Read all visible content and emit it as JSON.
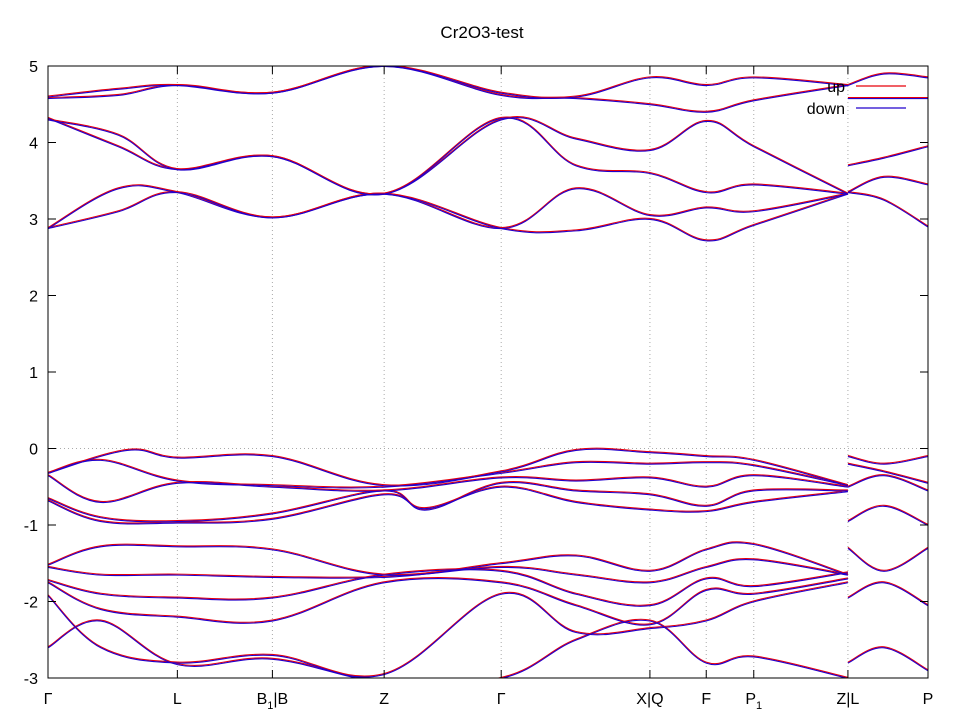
{
  "chart_data": {
    "type": "line",
    "title": "Cr2O3-test",
    "xlabel": "",
    "ylabel": "",
    "ylim": [
      -3,
      5
    ],
    "xlim": [
      0,
      10
    ],
    "yticks": [
      -3,
      -2,
      -1,
      0,
      1,
      2,
      3,
      4,
      5
    ],
    "grid": "dotted vertical lines at k-points, dotted horizontal line at 0",
    "legend_position": "top-right",
    "kpoints": [
      {
        "label": "Γ",
        "sub": "",
        "after": "",
        "x": 0
      },
      {
        "label": "L",
        "sub": "",
        "after": "",
        "x": 1.47
      },
      {
        "label": "B",
        "sub": "1",
        "after": "|B",
        "x": 2.55
      },
      {
        "label": "Z",
        "sub": "",
        "after": "",
        "x": 3.82
      },
      {
        "label": "Γ",
        "sub": "",
        "after": "",
        "x": 5.15
      },
      {
        "label": "X|Q",
        "sub": "",
        "after": "",
        "x": 6.84
      },
      {
        "label": "F",
        "sub": "",
        "after": "",
        "x": 7.48
      },
      {
        "label": "P",
        "sub": "1",
        "after": "",
        "x": 8.02
      },
      {
        "label": "Z|L",
        "sub": "",
        "after": "",
        "x": 9.09
      },
      {
        "label": "P",
        "sub": "",
        "after": "",
        "x": 10
      }
    ],
    "series": [
      {
        "name": "up",
        "color": "#e8000b"
      },
      {
        "name": "down",
        "color": "#2200cc"
      }
    ],
    "bands": [
      {
        "x": [
          0,
          0.9,
          1.47,
          2.55,
          3.82,
          5.15,
          6.0,
          6.84,
          7.48,
          8.02,
          9.09
        ],
        "y": [
          -0.32,
          -0.02,
          -0.12,
          -0.1,
          -0.48,
          -0.3,
          -0.02,
          -0.05,
          -0.1,
          -0.15,
          -0.48
        ]
      },
      {
        "x": [
          0,
          0.6,
          1.47,
          2.55,
          3.82,
          5.15,
          6.0,
          6.84,
          7.48,
          8.02,
          9.09
        ],
        "y": [
          -0.32,
          -0.15,
          -0.42,
          -0.48,
          -0.5,
          -0.32,
          -0.18,
          -0.2,
          -0.18,
          -0.22,
          -0.48
        ]
      },
      {
        "x": [
          0,
          0.6,
          1.47,
          2.55,
          3.82,
          5.15,
          6.0,
          6.84,
          7.48,
          8.02,
          9.09
        ],
        "y": [
          -0.35,
          -0.7,
          -0.45,
          -0.5,
          -0.55,
          -0.38,
          -0.42,
          -0.38,
          -0.5,
          -0.35,
          -0.5
        ]
      },
      {
        "x": [
          0,
          0.6,
          1.47,
          2.55,
          3.82,
          4.3,
          5.15,
          6.0,
          6.84,
          7.48,
          8.02,
          9.09
        ],
        "y": [
          -0.65,
          -0.9,
          -0.95,
          -0.85,
          -0.55,
          -0.8,
          -0.45,
          -0.55,
          -0.6,
          -0.75,
          -0.55,
          -0.55
        ]
      },
      {
        "x": [
          0,
          0.6,
          1.47,
          2.55,
          3.82,
          4.3,
          5.15,
          6.0,
          6.84,
          7.48,
          8.02,
          9.09
        ],
        "y": [
          -0.68,
          -0.95,
          -0.97,
          -0.92,
          -0.6,
          -0.78,
          -0.5,
          -0.7,
          -0.8,
          -0.82,
          -0.7,
          -0.56
        ]
      },
      {
        "x": [
          0,
          0.6,
          1.47,
          2.55,
          3.82,
          5.15,
          6.0,
          6.84,
          7.48,
          8.02,
          9.09
        ],
        "y": [
          -1.52,
          -1.28,
          -1.28,
          -1.32,
          -1.65,
          -1.5,
          -1.4,
          -1.6,
          -1.32,
          -1.25,
          -1.65
        ]
      },
      {
        "x": [
          0,
          0.6,
          1.47,
          2.55,
          3.82,
          5.15,
          6.0,
          6.84,
          7.48,
          8.02,
          9.09
        ],
        "y": [
          -1.55,
          -1.65,
          -1.65,
          -1.68,
          -1.68,
          -1.55,
          -1.65,
          -1.75,
          -1.55,
          -1.45,
          -1.65
        ]
      },
      {
        "x": [
          0,
          0.6,
          1.47,
          2.55,
          3.82,
          5.15,
          6.0,
          6.84,
          7.48,
          8.02,
          9.09
        ],
        "y": [
          -1.72,
          -1.9,
          -1.95,
          -1.95,
          -1.65,
          -1.6,
          -1.9,
          -2.05,
          -1.7,
          -1.8,
          -1.62
        ]
      },
      {
        "x": [
          0,
          0.6,
          1.47,
          2.55,
          3.82,
          5.15,
          6.0,
          6.84,
          7.48,
          8.02,
          9.09
        ],
        "y": [
          -1.75,
          -2.1,
          -2.2,
          -2.25,
          -1.75,
          -1.75,
          -2.05,
          -2.3,
          -1.85,
          -1.9,
          -1.7
        ]
      },
      {
        "x": [
          0,
          0.6,
          1.47,
          2.55,
          3.82,
          5.15,
          6.0,
          6.84,
          7.48,
          8.02,
          9.09
        ],
        "y": [
          -2.6,
          -2.25,
          -2.82,
          -2.75,
          -3.05,
          -3.0,
          -2.5,
          -2.25,
          -2.8,
          -2.72,
          -3.0
        ]
      },
      {
        "x": [
          0,
          0.6,
          1.47,
          2.55,
          3.82,
          5.15,
          6.0,
          6.84,
          7.48,
          8.02,
          9.09
        ],
        "y": [
          -1.92,
          -2.6,
          -2.8,
          -2.7,
          -2.95,
          -1.9,
          -2.4,
          -2.35,
          -2.25,
          -2.0,
          -1.75
        ]
      },
      {
        "x": [
          0,
          0.8,
          1.47,
          2.55,
          3.82,
          5.15,
          6.0,
          6.84,
          7.48,
          8.02,
          9.09
        ],
        "y": [
          2.88,
          3.4,
          3.35,
          3.02,
          3.33,
          2.88,
          2.85,
          3.0,
          2.72,
          2.92,
          3.33
        ]
      },
      {
        "x": [
          0,
          0.8,
          1.47,
          2.55,
          3.82,
          5.15,
          6.0,
          6.84,
          7.48,
          8.02,
          9.09
        ],
        "y": [
          2.88,
          3.1,
          3.35,
          3.02,
          3.33,
          2.88,
          3.4,
          3.05,
          3.15,
          3.1,
          3.33
        ]
      },
      {
        "x": [
          0,
          0.8,
          1.47,
          2.55,
          3.82,
          5.15,
          6.0,
          6.84,
          7.48,
          8.02,
          9.09
        ],
        "y": [
          4.32,
          3.95,
          3.65,
          3.82,
          3.33,
          4.32,
          3.7,
          3.6,
          3.35,
          3.45,
          3.33
        ]
      },
      {
        "x": [
          0,
          0.8,
          1.47,
          2.55,
          3.82,
          5.15,
          6.0,
          6.84,
          7.48,
          8.02,
          9.09
        ],
        "y": [
          4.3,
          4.1,
          3.65,
          3.82,
          3.33,
          4.3,
          4.05,
          3.9,
          4.28,
          3.95,
          3.33
        ]
      },
      {
        "x": [
          0,
          0.8,
          1.47,
          2.55,
          3.82,
          5.15,
          6.0,
          6.84,
          7.48,
          8.02,
          9.09
        ],
        "y": [
          4.58,
          4.62,
          4.75,
          4.65,
          5.0,
          4.62,
          4.58,
          4.5,
          4.4,
          4.55,
          4.75
        ]
      },
      {
        "x": [
          0,
          0.8,
          1.47,
          2.55,
          3.82,
          5.15,
          6.0,
          6.84,
          7.48,
          8.02,
          9.09
        ],
        "y": [
          4.6,
          4.7,
          4.75,
          4.65,
          5.0,
          4.65,
          4.6,
          4.85,
          4.75,
          4.85,
          4.75
        ]
      }
    ],
    "bands_last": [
      {
        "x": [
          9.09,
          9.5,
          10
        ],
        "y": [
          -0.1,
          -0.2,
          -0.1
        ]
      },
      {
        "x": [
          9.09,
          9.5,
          10
        ],
        "y": [
          -0.2,
          -0.3,
          -0.45
        ]
      },
      {
        "x": [
          9.09,
          9.5,
          10
        ],
        "y": [
          -0.5,
          -0.35,
          -0.55
        ]
      },
      {
        "x": [
          9.09,
          9.5,
          10
        ],
        "y": [
          -0.95,
          -0.75,
          -1.0
        ]
      },
      {
        "x": [
          9.09,
          9.5,
          10
        ],
        "y": [
          -1.3,
          -1.6,
          -1.3
        ]
      },
      {
        "x": [
          9.09,
          9.5,
          10
        ],
        "y": [
          -1.95,
          -1.75,
          -2.05
        ]
      },
      {
        "x": [
          9.09,
          9.5,
          10
        ],
        "y": [
          -2.8,
          -2.6,
          -2.9
        ]
      },
      {
        "x": [
          9.09,
          9.5,
          10
        ],
        "y": [
          3.7,
          3.8,
          3.95
        ]
      },
      {
        "x": [
          9.09,
          9.5,
          10
        ],
        "y": [
          3.35,
          3.55,
          3.45
        ]
      },
      {
        "x": [
          9.09,
          9.5,
          10
        ],
        "y": [
          3.35,
          3.25,
          2.9
        ]
      },
      {
        "x": [
          9.09,
          9.5,
          10
        ],
        "y": [
          4.58,
          4.58,
          4.58
        ]
      },
      {
        "x": [
          9.09,
          9.5,
          10
        ],
        "y": [
          4.75,
          4.9,
          4.85
        ]
      }
    ]
  }
}
